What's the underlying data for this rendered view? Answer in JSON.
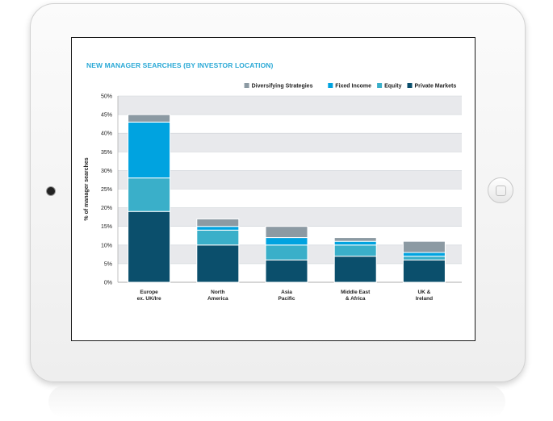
{
  "chart_data": {
    "type": "bar",
    "stacked": true,
    "title": "NEW MANAGER SEARCHES (BY INVESTOR LOCATION)",
    "ylabel": "% of manager searches",
    "ylim": [
      0,
      50
    ],
    "yticks": [
      "0%",
      "5%",
      "10%",
      "15%",
      "20%",
      "25%",
      "30%",
      "35%",
      "40%",
      "45%",
      "50%"
    ],
    "categories": [
      [
        "Europe",
        "ex. UK/Ire"
      ],
      [
        "North",
        "America"
      ],
      [
        "Asia",
        "Pacific"
      ],
      [
        "Middle East",
        "& Africa"
      ],
      [
        "UK &",
        "Ireland"
      ]
    ],
    "series": [
      {
        "name": "Private Markets",
        "color": "#0b4f6c",
        "values": [
          19,
          10,
          6,
          7,
          6
        ]
      },
      {
        "name": "Equity",
        "color": "#3aafc9",
        "values": [
          9,
          4,
          4,
          3,
          1
        ]
      },
      {
        "name": "Fixed Income",
        "color": "#00a3e0",
        "values": [
          15,
          1,
          2,
          1,
          1
        ]
      },
      {
        "name": "Diversifying Strategies",
        "color": "#8c9aa3",
        "values": [
          2,
          2,
          3,
          1,
          3
        ]
      }
    ],
    "legend_order": [
      "Diversifying Strategies",
      "Fixed Income",
      "Equity",
      "Private Markets"
    ],
    "legend_position": "top-right",
    "grid": "alternating bands"
  }
}
